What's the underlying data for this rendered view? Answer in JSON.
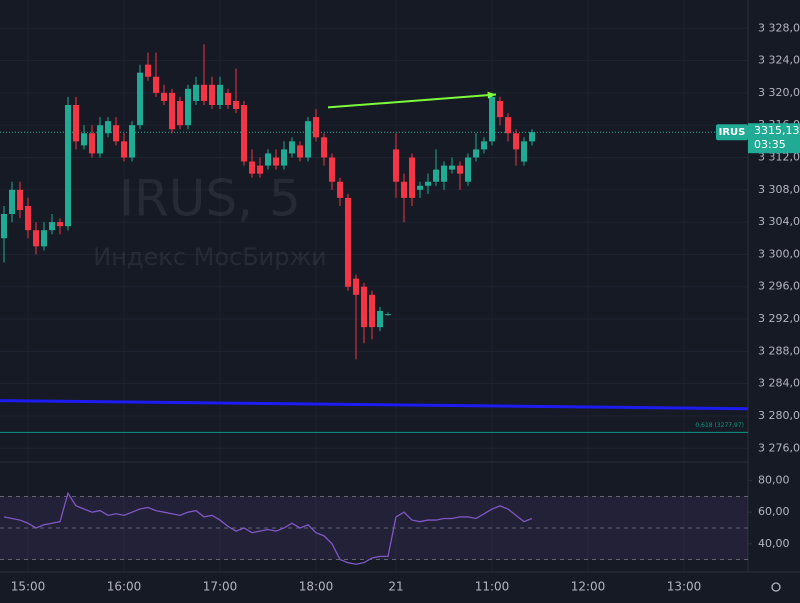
{
  "chart_data": [
    {
      "type": "candlestick",
      "title": "IRUS, 5",
      "subtitle": "Индекс МосБиржи",
      "up_color": "#22ab94",
      "down_color": "#f23645",
      "x": [
        -3,
        -2,
        -1,
        0,
        1,
        2,
        3,
        4,
        5,
        6,
        7,
        8,
        9,
        10,
        11,
        12,
        13,
        14,
        15,
        16,
        17,
        18,
        19,
        20,
        21,
        22,
        23,
        24,
        25,
        26,
        27,
        28,
        29,
        30,
        31,
        32,
        33,
        34,
        35,
        36,
        37,
        38,
        39,
        40,
        41,
        42,
        43,
        44,
        45,
        46,
        47,
        48,
        49,
        50,
        51,
        52,
        53,
        54,
        55,
        56,
        57,
        58,
        59,
        60,
        61,
        62,
        63
      ],
      "open": [
        3302,
        3305,
        3308,
        3306,
        3303,
        3301,
        3303,
        3304,
        3303.5,
        3318.5,
        3313.5,
        3315,
        3312.5,
        3315,
        3316,
        3314,
        3312,
        3316,
        3323.5,
        3322,
        3320,
        3320,
        3319,
        3316,
        3319,
        3321,
        3321,
        3318.5,
        3320,
        3319,
        3318.5,
        3311.5,
        3311,
        3311,
        3312,
        3311,
        3312.5,
        3313.5,
        3312,
        3317,
        3314.5,
        3312,
        3309,
        3307,
        3297,
        3296,
        3295,
        3291,
        3292.5,
        3313,
        3309,
        3312,
        3308,
        3308.5,
        3309,
        3309,
        3310.5,
        3311,
        3309,
        3312,
        3313,
        3314,
        3319,
        3317,
        3315,
        3311.5,
        3314
      ],
      "high": [
        3306,
        3309,
        3309,
        3307,
        3304,
        3304,
        3305,
        3304.5,
        3319.5,
        3319.5,
        3316,
        3316,
        3317,
        3317,
        3317,
        3315,
        3316.5,
        3323.5,
        3325,
        3325,
        3321,
        3320.5,
        3319.5,
        3321,
        3322,
        3326,
        3322,
        3322,
        3320.5,
        3323,
        3319,
        3313,
        3312,
        3313,
        3313,
        3314,
        3314.5,
        3314,
        3317,
        3318,
        3315,
        3312.5,
        3309.5,
        3307.5,
        3297.5,
        3296.5,
        3295.5,
        3293.5,
        3292.8,
        3315,
        3310,
        3312.5,
        3309,
        3310,
        3313,
        3311.5,
        3312,
        3311.5,
        3312.5,
        3315,
        3314.5,
        3320,
        3319.5,
        3317.5,
        3315.5,
        3314.5,
        3315.5
      ],
      "low": [
        3299,
        3304,
        3304.5,
        3302,
        3300,
        3300.5,
        3302.5,
        3302.5,
        3303,
        3313,
        3313,
        3312,
        3312,
        3314.5,
        3313.5,
        3311.5,
        3311.5,
        3315.5,
        3321.5,
        3319.5,
        3318.5,
        3315,
        3315.5,
        3315.5,
        3318.5,
        3318.5,
        3318,
        3318,
        3318,
        3317.5,
        3311,
        3309.5,
        3309.5,
        3310.5,
        3310.5,
        3310.5,
        3312,
        3311.5,
        3311.5,
        3314,
        3311,
        3308,
        3306,
        3295.5,
        3287,
        3289,
        3289.5,
        3290.5,
        3292.4,
        3307,
        3304,
        3306,
        3307,
        3307.5,
        3308.5,
        3308,
        3310,
        3308,
        3308.5,
        3311.5,
        3312.5,
        3313.5,
        3316,
        3314,
        3311,
        3311,
        3313.5
      ],
      "close": [
        3305,
        3308,
        3305.5,
        3303,
        3301,
        3303,
        3304,
        3303.5,
        3318.5,
        3314,
        3315,
        3312.5,
        3316,
        3316.5,
        3314,
        3312,
        3316,
        3322.5,
        3322,
        3320,
        3319,
        3315.5,
        3316,
        3320.5,
        3321,
        3319,
        3318.5,
        3321,
        3318.5,
        3318,
        3311.5,
        3310,
        3310,
        3312.5,
        3311,
        3313,
        3314,
        3312,
        3316.5,
        3314.5,
        3312,
        3309,
        3307,
        3296,
        3295,
        3291,
        3291,
        3293,
        3292.6,
        3309,
        3307,
        3307,
        3308.5,
        3309,
        3310.5,
        3311,
        3311,
        3310,
        3312,
        3313,
        3314,
        3319.5,
        3317,
        3315,
        3313,
        3314,
        3315.13
      ],
      "xlim": [
        -3.5,
        90
      ],
      "ylim": [
        3274.3,
        3331.5
      ],
      "xticks": [
        {
          "value": 0,
          "label": "15:00"
        },
        {
          "value": 12,
          "label": "16:00"
        },
        {
          "value": 24,
          "label": "17:00"
        },
        {
          "value": 36,
          "label": "18:00"
        },
        {
          "value": 46,
          "label": "21"
        },
        {
          "value": 58,
          "label": "11:00"
        },
        {
          "value": 70,
          "label": "12:00"
        },
        {
          "value": 82,
          "label": "13:00"
        }
      ],
      "yticks": [
        {
          "value": 3328,
          "label": "3 328,00"
        },
        {
          "value": 3324,
          "label": "3 324,00"
        },
        {
          "value": 3320,
          "label": "3 320,00"
        },
        {
          "value": 3316,
          "label": "3 316,00"
        },
        {
          "value": 3312,
          "label": "3 312,00"
        },
        {
          "value": 3308,
          "label": "3 308,00"
        },
        {
          "value": 3304,
          "label": "3 304,00"
        },
        {
          "value": 3300,
          "label": "3 300,00"
        },
        {
          "value": 3296,
          "label": "3 296,00"
        },
        {
          "value": 3292,
          "label": "3 292,00"
        },
        {
          "value": 3288,
          "label": "3 288,00"
        },
        {
          "value": 3284,
          "label": "3 284,00"
        },
        {
          "value": 3280,
          "label": "3 280,00"
        },
        {
          "value": 3276,
          "label": "3 276,00"
        }
      ],
      "grid": true,
      "symbol_label": "IRUS",
      "last_price": {
        "value": 3315.13,
        "label": "3315,13"
      },
      "countdown": "03:35",
      "trendline": {
        "color": "#1c1cf0",
        "x": [
          -3.5,
          90
        ],
        "y": [
          3281.9,
          3280.9
        ]
      },
      "arrow": {
        "color": "#7dfc3a",
        "x": [
          37.5,
          58.5
        ],
        "y": [
          3318.2,
          3319.8
        ]
      },
      "fib_level": {
        "value": 3277.97,
        "label": "0,618 (3277,97)",
        "color": "#089981"
      }
    },
    {
      "type": "line",
      "color": "#7e57c2",
      "values": [
        57,
        56,
        55,
        53,
        50,
        52,
        53,
        54,
        72,
        64,
        62,
        60,
        61,
        58,
        59,
        58,
        60,
        62,
        63,
        61,
        60,
        59,
        58,
        60,
        61,
        57,
        58,
        55,
        51,
        48,
        50,
        47,
        48,
        49,
        48,
        50,
        53,
        50,
        52,
        47,
        45,
        40,
        30,
        28,
        27,
        28,
        31,
        32,
        32,
        57,
        60,
        55,
        54,
        55,
        55,
        56,
        56,
        57,
        57,
        56,
        59,
        62,
        64,
        62,
        58,
        54,
        56
      ],
      "ylim": [
        24,
        88
      ],
      "yticks": [
        {
          "value": 80,
          "label": "80,00"
        },
        {
          "value": 60,
          "label": "60,00"
        },
        {
          "value": 40,
          "label": "40,00"
        }
      ],
      "bands": [
        70,
        50,
        30
      ]
    }
  ]
}
